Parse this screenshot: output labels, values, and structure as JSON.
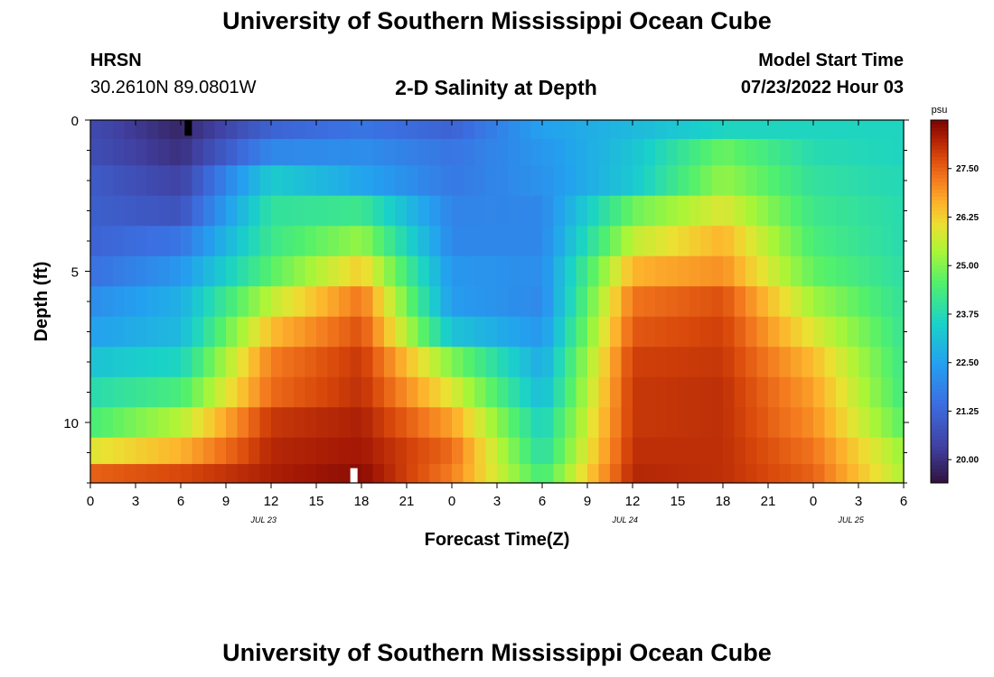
{
  "header": {
    "title": "University of Southern Mississippi Ocean Cube",
    "station": "HRSN",
    "coordinates": "30.2610N  89.0801W",
    "product": "2-D Salinity at Depth",
    "model_start_label": "Model Start Time",
    "model_start_value": "07/23/2022 Hour 03"
  },
  "footer": {
    "title": "University of Southern Mississippi Ocean Cube"
  },
  "chart_data": {
    "type": "heatmap",
    "title": "2-D Salinity at Depth",
    "xlabel": "Forecast Time(Z)",
    "ylabel": "Depth (ft)",
    "x_range_hours": [
      0,
      54
    ],
    "y_range_ft": [
      0,
      12
    ],
    "x_ticks": [
      {
        "h": 0,
        "label": "0"
      },
      {
        "h": 3,
        "label": "3"
      },
      {
        "h": 6,
        "label": "6"
      },
      {
        "h": 9,
        "label": "9"
      },
      {
        "h": 12,
        "label": "12"
      },
      {
        "h": 15,
        "label": "15"
      },
      {
        "h": 18,
        "label": "18"
      },
      {
        "h": 21,
        "label": "21"
      },
      {
        "h": 24,
        "label": "0"
      },
      {
        "h": 27,
        "label": "3"
      },
      {
        "h": 30,
        "label": "6"
      },
      {
        "h": 33,
        "label": "9"
      },
      {
        "h": 36,
        "label": "12"
      },
      {
        "h": 39,
        "label": "15"
      },
      {
        "h": 42,
        "label": "18"
      },
      {
        "h": 45,
        "label": "21"
      },
      {
        "h": 48,
        "label": "0"
      },
      {
        "h": 51,
        "label": "3"
      },
      {
        "h": 54,
        "label": "6"
      }
    ],
    "date_labels": [
      {
        "h": 11.5,
        "label": "JUL 23"
      },
      {
        "h": 35.5,
        "label": "JUL 24"
      },
      {
        "h": 50.5,
        "label": "JUL 25"
      }
    ],
    "y_ticks": [
      {
        "ft": 0,
        "label": "0"
      },
      {
        "ft": 5,
        "label": "5"
      },
      {
        "ft": 10,
        "label": "10"
      }
    ],
    "depth_levels_ft": [
      0.25,
      1,
      2,
      3,
      4,
      5,
      6,
      7,
      8,
      9,
      10,
      11,
      11.75
    ],
    "time_keys_hours": [
      0,
      6,
      12,
      18,
      24,
      30,
      36,
      42,
      48,
      54
    ],
    "salinity_by_level": [
      [
        20.6,
        19.8,
        21.2,
        21.6,
        21.2,
        22.5,
        23.0,
        23.6,
        23.6,
        23.6
      ],
      [
        20.7,
        20.0,
        22.0,
        22.1,
        21.6,
        22.3,
        23.2,
        24.8,
        23.8,
        23.6
      ],
      [
        21.0,
        20.4,
        23.4,
        22.6,
        21.7,
        22.2,
        23.3,
        25.2,
        24.0,
        23.7
      ],
      [
        21.1,
        20.8,
        24.0,
        24.2,
        21.9,
        22.0,
        24.8,
        25.9,
        24.2,
        23.8
      ],
      [
        21.2,
        21.6,
        24.2,
        25.2,
        22.0,
        22.0,
        25.6,
        26.6,
        24.4,
        23.8
      ],
      [
        21.5,
        22.3,
        24.6,
        26.3,
        22.3,
        22.1,
        26.6,
        27.0,
        24.7,
        23.9
      ],
      [
        22.1,
        22.8,
        25.6,
        27.3,
        22.4,
        22.0,
        27.3,
        27.7,
        25.3,
        24.0
      ],
      [
        22.5,
        23.0,
        26.5,
        27.7,
        23.2,
        22.3,
        27.6,
        27.9,
        25.9,
        24.1
      ],
      [
        23.2,
        23.6,
        27.2,
        28.0,
        25.0,
        22.7,
        27.9,
        28.0,
        26.5,
        24.2
      ],
      [
        23.8,
        24.4,
        27.4,
        28.1,
        25.9,
        23.0,
        28.0,
        28.1,
        26.8,
        24.3
      ],
      [
        24.4,
        25.5,
        28.0,
        28.3,
        26.8,
        23.5,
        28.0,
        28.1,
        27.0,
        24.6
      ],
      [
        25.9,
        26.6,
        28.2,
        28.4,
        27.4,
        23.8,
        28.1,
        28.1,
        27.3,
        25.2
      ],
      [
        27.5,
        27.8,
        28.3,
        28.6,
        27.2,
        24.3,
        28.2,
        28.1,
        27.5,
        25.4
      ]
    ],
    "markers": [
      {
        "type": "min",
        "h": 6.5,
        "ft": 0.25,
        "color": "#000000"
      },
      {
        "type": "max",
        "h": 17.5,
        "ft": 11.75,
        "color": "#ffffff"
      }
    ],
    "colorbar": {
      "unit": "psu",
      "range": [
        19.4,
        28.75
      ],
      "ticks": [
        "20.00",
        "21.25",
        "22.50",
        "23.75",
        "25.00",
        "26.25",
        "27.50"
      ]
    },
    "grid": false
  }
}
